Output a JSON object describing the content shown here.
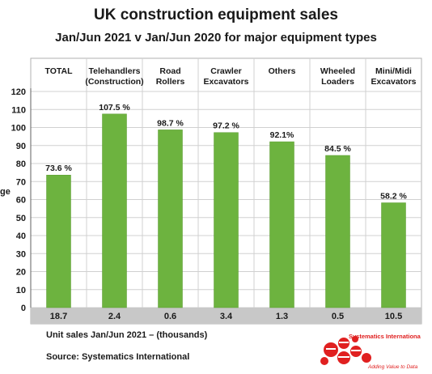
{
  "title": "UK construction equipment sales",
  "subtitle": "Jan/Jun 2021  v  Jan/Jun 2020 for major equipment types",
  "footer": {
    "units_note": "Unit sales Jan/Jun 2021 – (thousands)",
    "source": "Source: Systematics International"
  },
  "logo": {
    "name": "Systematics International Ltd.",
    "tagline": "Adding Value to Data",
    "color": "#e02020"
  },
  "colors": {
    "bar": "#6db33f",
    "bar_edge": "#5a9a30",
    "units_band": "#c8c8c8",
    "grid": "#d0d0d0"
  },
  "chart_data": {
    "type": "bar",
    "categories": [
      "TOTAL",
      "Telehandlers (Construction)",
      "Road Rollers",
      "Crawler Excavators",
      "Others",
      "Wheeled Loaders",
      "Mini/Midi Excavators"
    ],
    "category_lines": [
      [
        "TOTAL"
      ],
      [
        "Telehandlers",
        "(Construction)"
      ],
      [
        "Road",
        "Rollers"
      ],
      [
        "Crawler",
        "Excavators"
      ],
      [
        "Others"
      ],
      [
        "Wheeled",
        "Loaders"
      ],
      [
        "Mini/Midi",
        "Excavators"
      ]
    ],
    "values": [
      73.6,
      107.5,
      98.7,
      97.2,
      92.1,
      84.5,
      58.2
    ],
    "value_labels": [
      "73.6 %",
      "107.5 %",
      "98.7 %",
      "97.2 %",
      "92.1%",
      "84.5 %",
      "58.2 %"
    ],
    "unit_sales": [
      "18.7",
      "2.4",
      "0.6",
      "3.4",
      "1.3",
      "0.5",
      "10.5"
    ],
    "ylabel": "ge",
    "ylim": [
      0,
      120
    ],
    "yticks": [
      0,
      10,
      20,
      30,
      40,
      50,
      60,
      70,
      80,
      90,
      100,
      110,
      120
    ],
    "grid": true,
    "legend": "none"
  }
}
